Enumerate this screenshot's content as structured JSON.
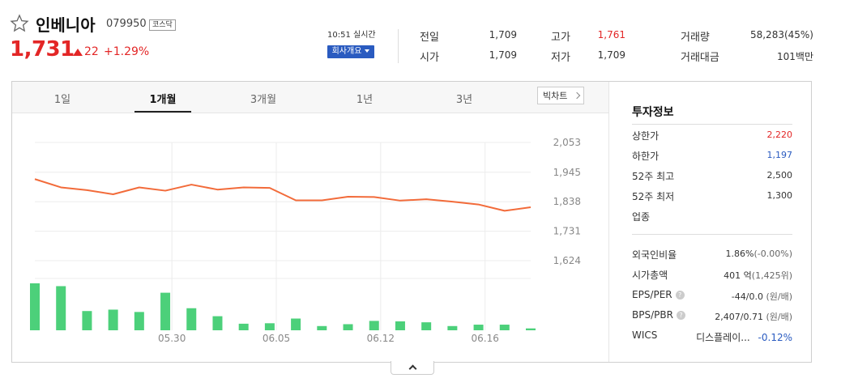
{
  "stock": {
    "name": "인베니아",
    "code": "079950",
    "market": "코스닥",
    "price": "1,731",
    "change": "22",
    "change_rate": "+1.29%"
  },
  "header": {
    "realtime_label": "10:51 실시간",
    "company_info_label": "회사개요"
  },
  "quotes": [
    {
      "label": "전일",
      "value": "1,709",
      "color": "#333333"
    },
    {
      "label": "고가",
      "value": "1,761",
      "color": "#e32626"
    },
    {
      "label": "거래량",
      "value": "58,283(45%)",
      "color": "#333333"
    },
    {
      "label": "시가",
      "value": "1,709",
      "color": "#333333"
    },
    {
      "label": "저가",
      "value": "1,709",
      "color": "#333333"
    },
    {
      "label": "거래대금",
      "value": "101백만",
      "color": "#333333"
    }
  ],
  "tabs": [
    {
      "label": "1일",
      "active": false
    },
    {
      "label": "1개월",
      "active": true
    },
    {
      "label": "3개월",
      "active": false
    },
    {
      "label": "1년",
      "active": false
    },
    {
      "label": "3년",
      "active": false
    }
  ],
  "big_chart_label": "빅차트",
  "chart_data": {
    "type": "line",
    "price_axis_ticks": [
      "2,053",
      "1,945",
      "1,838",
      "1,731",
      "1,624"
    ],
    "price_tick_values": [
      2053,
      1945,
      1838,
      1731,
      1624
    ],
    "x_tick_labels": [
      "05.30",
      "06.05",
      "06.12",
      "06.16"
    ],
    "x_tick_index": [
      5,
      9,
      13,
      17
    ],
    "prices": [
      1920,
      1890,
      1880,
      1865,
      1890,
      1878,
      1900,
      1882,
      1890,
      1888,
      1843,
      1843,
      1856,
      1855,
      1842,
      1847,
      1838,
      1828,
      1805,
      1818
    ],
    "volume_relative": [
      1.0,
      0.94,
      0.41,
      0.44,
      0.39,
      0.8,
      0.47,
      0.3,
      0.14,
      0.15,
      0.25,
      0.09,
      0.13,
      0.2,
      0.19,
      0.17,
      0.09,
      0.12,
      0.12,
      0.04
    ],
    "line_color": "#f26b3a",
    "bar_color": "#4cd07a"
  },
  "invest_info": {
    "title": "투자정보",
    "rows": [
      {
        "label": "상한가",
        "value": "2,220",
        "color": "#e32626"
      },
      {
        "label": "하한가",
        "value": "1,197",
        "color": "#2a5bc0"
      },
      {
        "label": "52주 최고",
        "value": "2,500",
        "color": "#333333"
      },
      {
        "label": "52주 최저",
        "value": "1,300",
        "color": "#333333"
      },
      {
        "label": "업종",
        "value": "",
        "color": "#333333"
      }
    ],
    "foreign_rate_label": "외국인비율",
    "foreign_rate_value": "1.86%",
    "foreign_rate_change": "(-0.00%)",
    "market_cap_label": "시가총액",
    "market_cap_value": "401 억",
    "market_cap_sub": "(1,425위)",
    "eps_label": "EPS/PER",
    "eps_value": "-44/0.0",
    "eps_unit": "(원/배)",
    "bps_label": "BPS/PBR",
    "bps_value": "2,407/0.71",
    "bps_unit": "(원/배)",
    "wics_label": "WICS",
    "wics_value": "디스플레이...",
    "wics_change": "-0.12%"
  }
}
